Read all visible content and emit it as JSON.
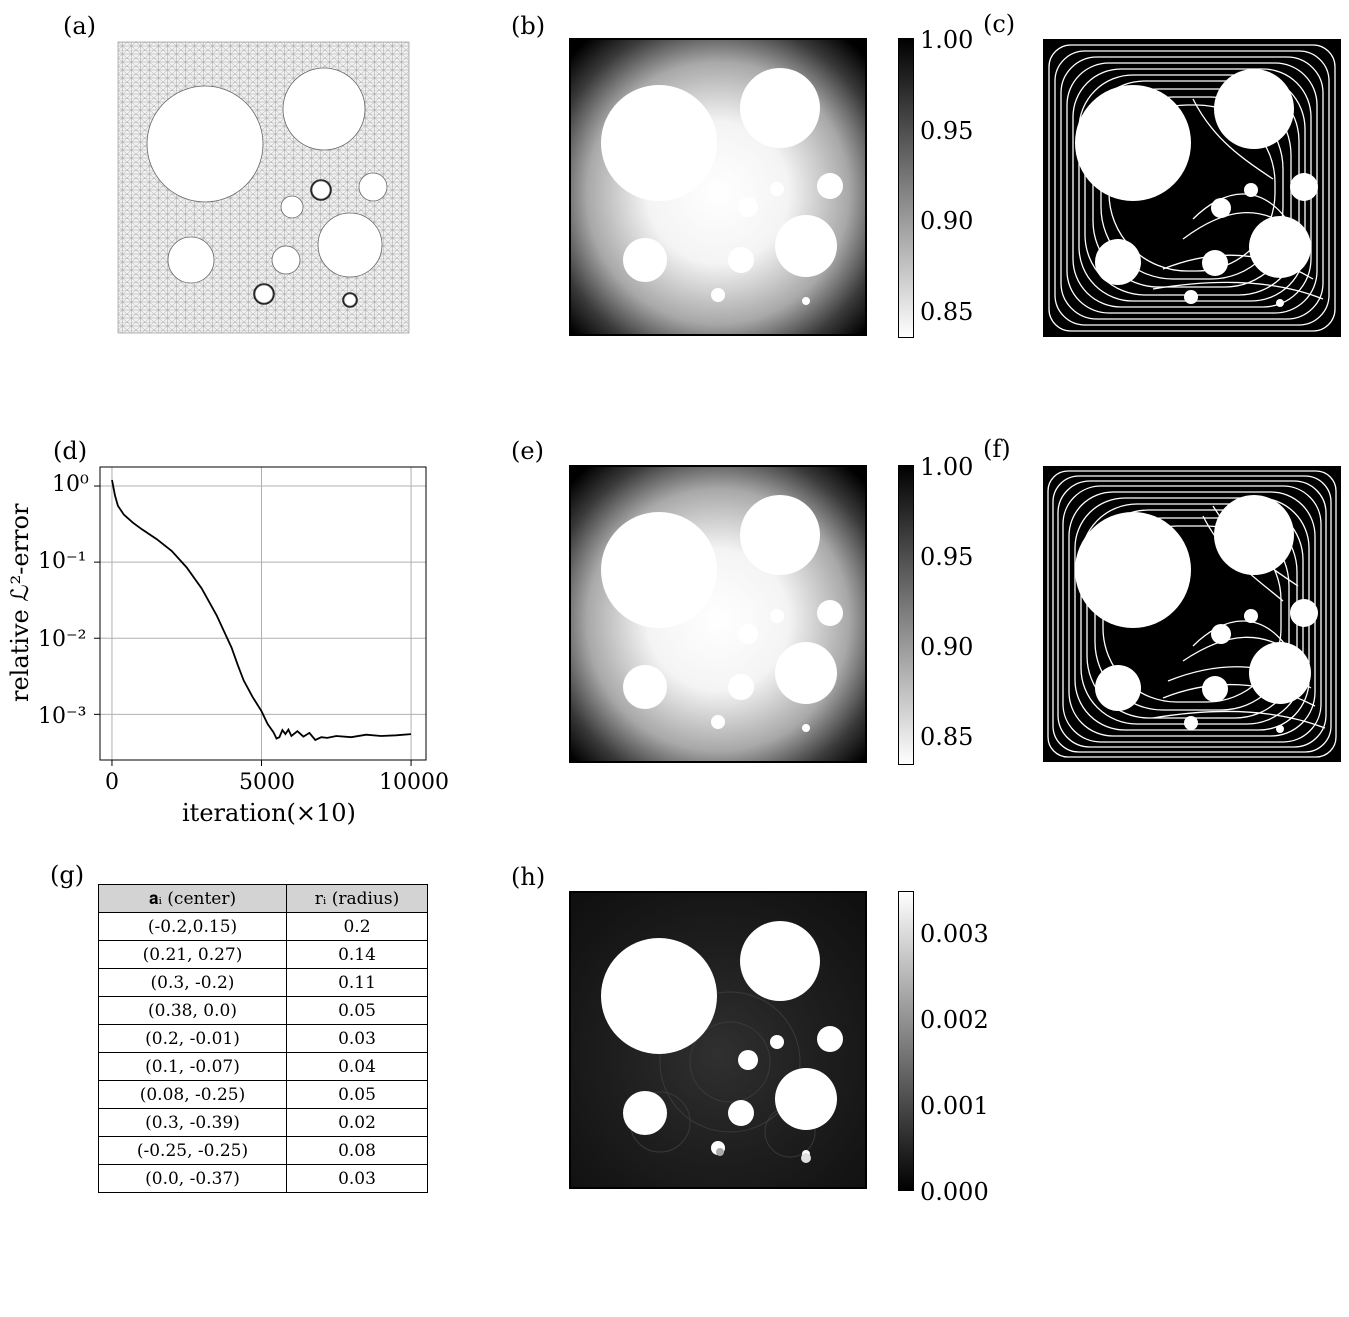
{
  "panel_labels": {
    "a": "(a)",
    "b": "(b)",
    "c": "(c)",
    "d": "(d)",
    "e": "(e)",
    "f": "(f)",
    "g": "(g)",
    "h": "(h)"
  },
  "colorbar_be": {
    "ticks": [
      "1.00",
      "0.95",
      "0.90",
      "0.85"
    ],
    "colors": {
      "top": "#000000",
      "bottom": "#ffffff"
    }
  },
  "colorbar_h": {
    "ticks": [
      "0.003",
      "0.002",
      "0.001",
      "0.000"
    ],
    "colors": {
      "top": "#ffffff",
      "bottom": "#000000"
    }
  },
  "chart_data": {
    "type": "line",
    "ylabel": "relative ℒ²-error",
    "xlabel": "iteration(×10)",
    "xticks": [
      "0",
      "5000",
      "10000"
    ],
    "yticks": [
      "10⁰",
      "10⁻¹",
      "10⁻²",
      "10⁻³"
    ],
    "xlim": [
      -400,
      10500
    ],
    "ylim_log10": [
      -3.6,
      0.25
    ],
    "yscale": "log",
    "grid": true,
    "series": [
      {
        "x": [
          0,
          100,
          200,
          400,
          700,
          1000,
          1500,
          2000,
          2500,
          3000,
          3500,
          4000,
          4200,
          4400,
          4700,
          5000,
          5200,
          5400,
          5500,
          5600,
          5700,
          5800,
          5900,
          6000,
          6200,
          6400,
          6600,
          6800,
          7000,
          7200,
          7500,
          8000,
          8500,
          9000,
          9500,
          10000
        ],
        "y": [
          1.2,
          0.75,
          0.55,
          0.42,
          0.33,
          0.27,
          0.2,
          0.14,
          0.085,
          0.045,
          0.02,
          0.0075,
          0.0045,
          0.0028,
          0.0017,
          0.0011,
          0.00075,
          0.00058,
          0.00048,
          0.0005,
          0.00062,
          0.00055,
          0.00063,
          0.00052,
          0.0006,
          0.00051,
          0.00057,
          0.00046,
          0.0005,
          0.00049,
          0.00052,
          0.0005,
          0.00054,
          0.00052,
          0.00053,
          0.00055
        ]
      }
    ]
  },
  "table": {
    "headers": [
      "𝐚ᵢ (center)",
      "rᵢ (radius)"
    ],
    "rows": [
      [
        "(-0.2,0.15)",
        "0.2"
      ],
      [
        "(0.21, 0.27)",
        "0.14"
      ],
      [
        "(0.3, -0.2)",
        "0.11"
      ],
      [
        "(0.38, 0.0)",
        "0.05"
      ],
      [
        "(0.2, -0.01)",
        "0.03"
      ],
      [
        "(0.1, -0.07)",
        "0.04"
      ],
      [
        "(0.08, -0.25)",
        "0.05"
      ],
      [
        "(0.3, -0.39)",
        "0.02"
      ],
      [
        "(-0.25, -0.25)",
        "0.08"
      ],
      [
        "(0.0, -0.37)",
        "0.03"
      ]
    ]
  }
}
